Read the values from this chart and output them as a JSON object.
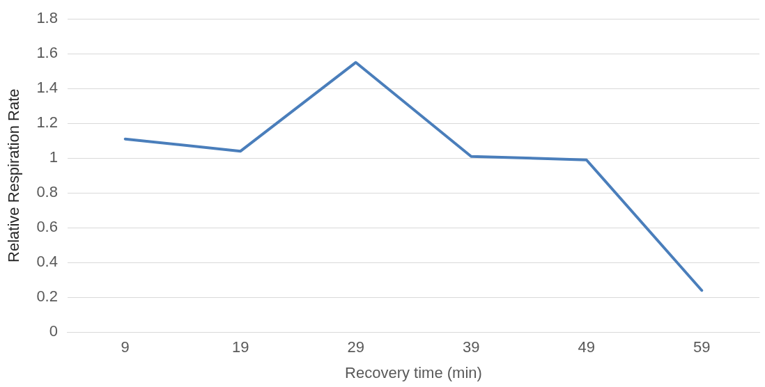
{
  "chart_data": {
    "type": "line",
    "xlabel": "Recovery time (min)",
    "ylabel": "Relative Respiration Rate",
    "categories": [
      "9",
      "19",
      "29",
      "39",
      "49",
      "59"
    ],
    "series": [
      {
        "color": "#4a7ebb",
        "values": [
          1.11,
          1.04,
          1.55,
          1.01,
          0.99,
          0.24
        ]
      }
    ],
    "ylim": [
      0,
      1.8
    ],
    "yticks": [
      0,
      0.2,
      0.4,
      0.6,
      0.8,
      1,
      1.2,
      1.4,
      1.6,
      1.8
    ],
    "grid": "y",
    "legend": false,
    "marker": "none",
    "line_style": "solid"
  }
}
